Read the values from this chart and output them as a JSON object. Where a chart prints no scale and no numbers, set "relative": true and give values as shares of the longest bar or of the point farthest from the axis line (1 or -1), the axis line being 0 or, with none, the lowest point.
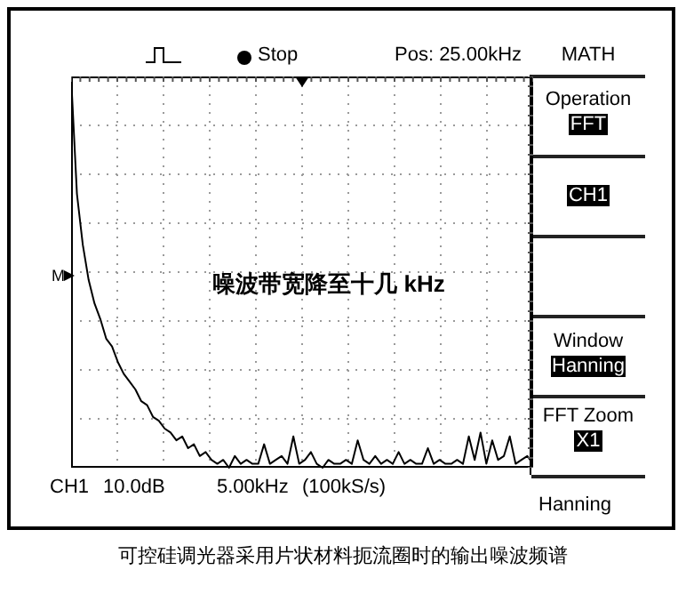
{
  "chart_data": {
    "type": "line",
    "relative": true,
    "title": "可控硅调光器采用片状材料扼流圈时的输出噪波频谱",
    "categories": [
      null,
      null,
      null,
      null,
      null,
      null,
      null,
      null,
      null,
      null,
      null,
      null,
      null,
      null,
      null,
      null,
      null,
      null,
      null,
      null,
      null,
      null,
      null,
      null,
      null,
      null,
      null,
      null,
      null,
      null,
      null,
      null,
      null,
      null,
      null,
      null,
      null,
      null,
      null,
      null,
      null,
      null,
      null,
      null,
      null,
      null,
      null,
      null,
      null,
      null,
      null,
      null,
      null,
      null,
      null,
      null,
      null,
      null,
      null,
      null,
      null,
      null,
      null,
      null,
      null,
      null,
      null,
      null,
      null,
      null,
      null,
      null,
      null,
      null,
      null,
      null,
      null,
      null,
      null,
      null
    ],
    "series": [
      {
        "color": "#000000",
        "values": [
          1.0,
          0.7,
          0.57,
          0.48,
          0.42,
          0.38,
          0.33,
          0.31,
          0.27,
          0.24,
          0.22,
          0.2,
          0.17,
          0.16,
          0.13,
          0.12,
          0.1,
          0.09,
          0.07,
          0.08,
          0.05,
          0.06,
          0.03,
          0.04,
          0.02,
          0.01,
          0.02,
          0,
          0.03,
          0.01,
          0.02,
          0.01,
          0.01,
          0.06,
          0.01,
          0.02,
          0.03,
          0.01,
          0.08,
          0.01,
          0.02,
          0.04,
          0.01,
          0,
          0.02,
          0.01,
          0.01,
          0.02,
          0.01,
          0.07,
          0.02,
          0.01,
          0.03,
          0.01,
          0.02,
          0.01,
          0.04,
          0.01,
          0.02,
          0.01,
          0.01,
          0.05,
          0.01,
          0.02,
          0.01,
          0.01,
          0.02,
          0.01,
          0.08,
          0.02,
          0.09,
          0.01,
          0.07,
          0.02,
          0.03,
          0.08,
          0.01,
          0.02,
          0.03,
          0.01
        ]
      }
    ],
    "grid": true,
    "marker": "none",
    "line_style": "solid",
    "annotations": [
      "噪波带宽降至十几 kHz",
      "Stop",
      "Pos: 25.00kHz",
      "MATH",
      "Operation",
      "FFT",
      "CH1",
      "Window",
      "Hanning",
      "FFT Zoom",
      "X1",
      "M",
      "CH1",
      "10.0dB",
      "5.00kHz",
      "(100kS/s)",
      "Hanning"
    ]
  }
}
